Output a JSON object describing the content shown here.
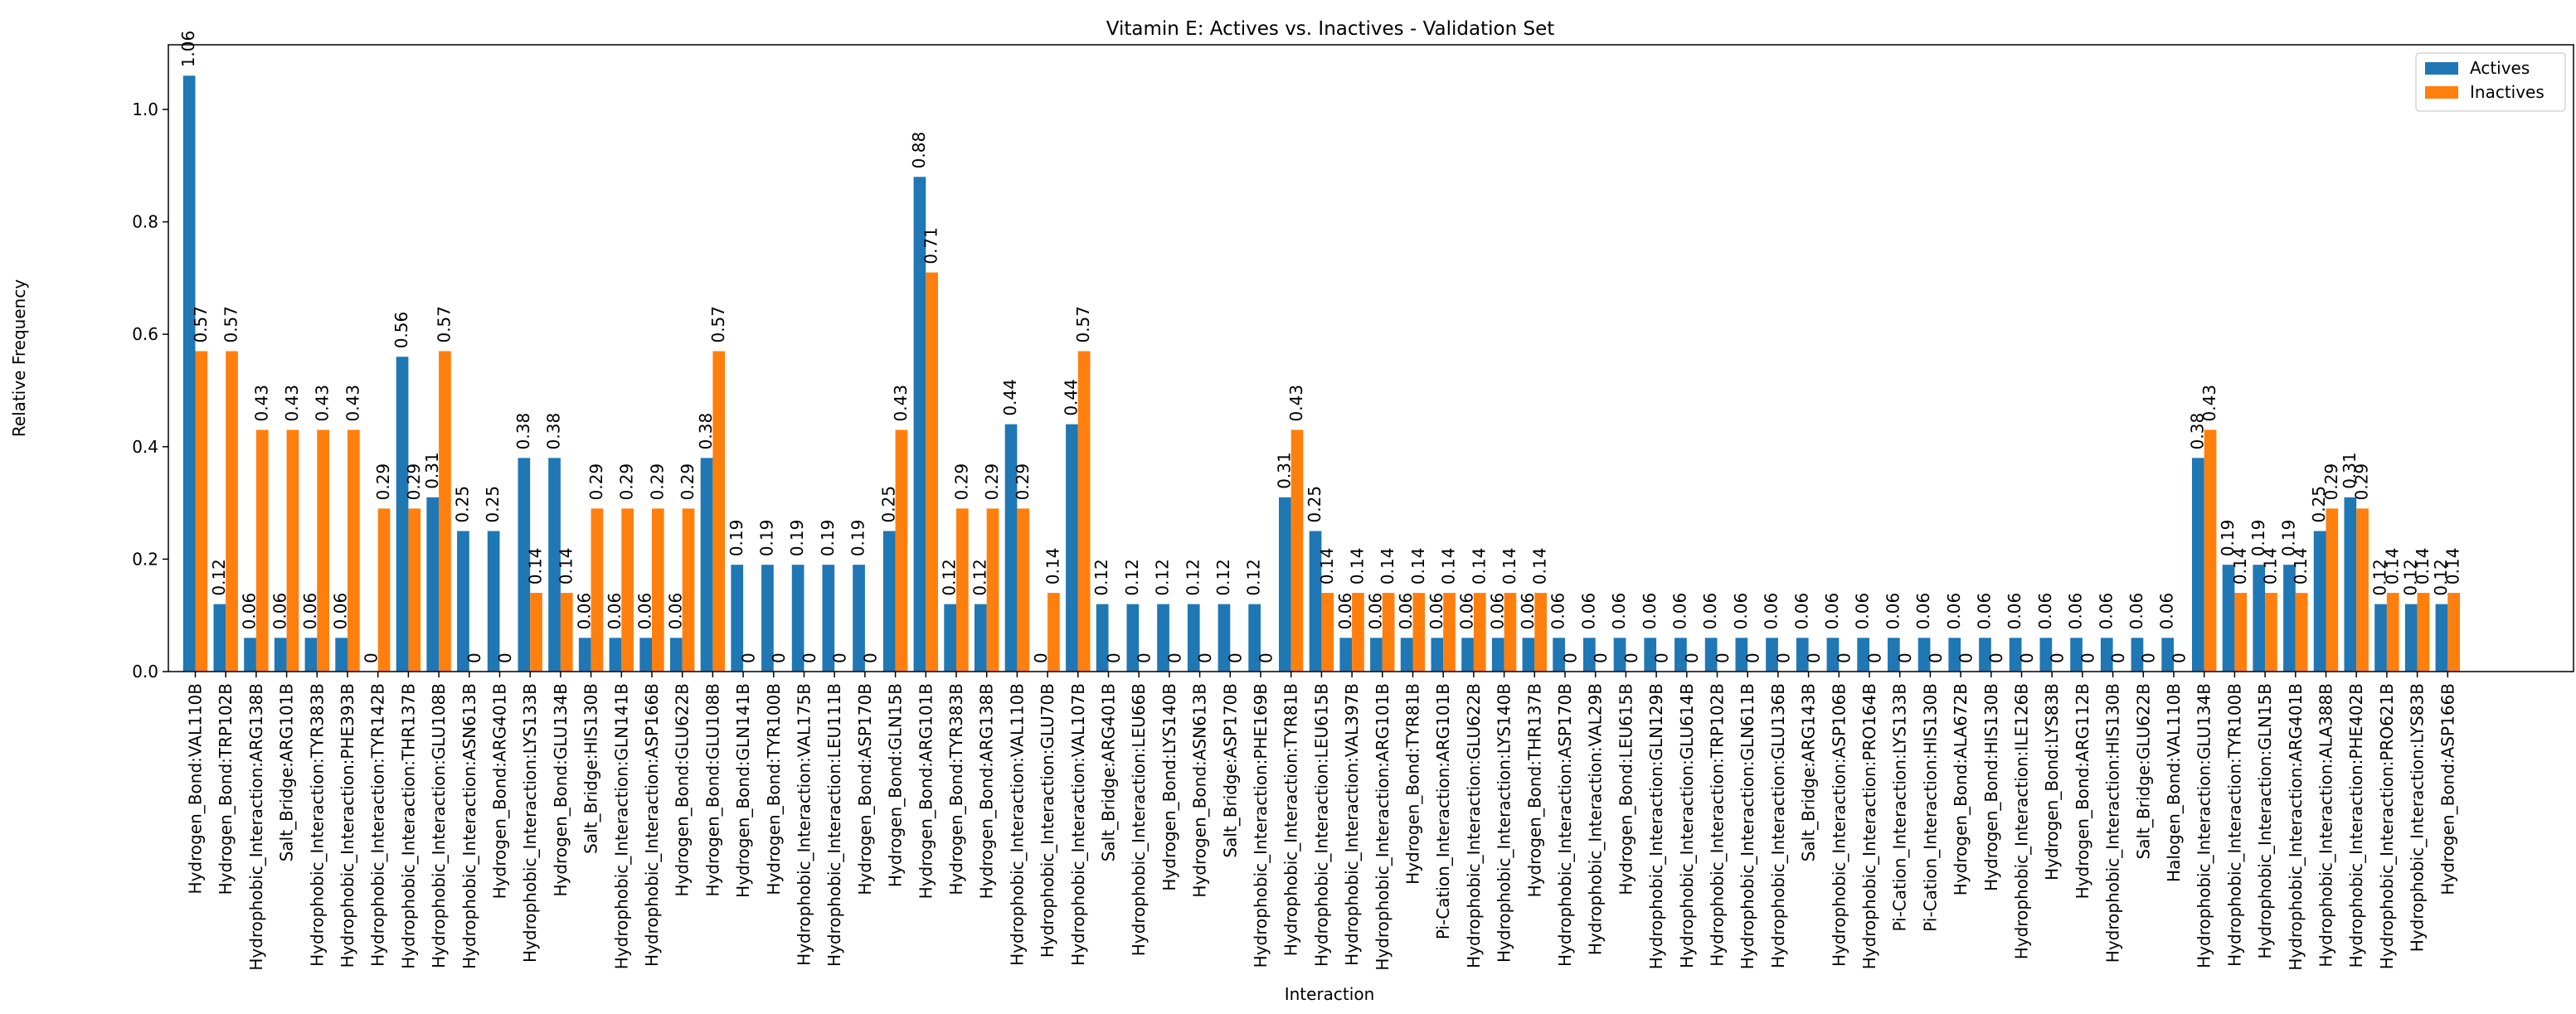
{
  "chart_data": {
    "type": "bar",
    "title": "Vitamin E: Actives vs. Inactives - Validation Set",
    "xlabel": "Interaction",
    "ylabel": "Relative Frequency",
    "ylim": [
      0,
      1.115
    ],
    "yticks": [
      0.0,
      0.2,
      0.4,
      0.6,
      0.8,
      1.0
    ],
    "ytick_labels": [
      "0.0",
      "0.2",
      "0.4",
      "0.6",
      "0.8",
      "1.0"
    ],
    "legend_position": "top-right",
    "grid": false,
    "categories": [
      "Hydrogen_Bond:VAL110B",
      "Hydrogen_Bond:TRP102B",
      "Hydrophobic_Interaction:ARG138B",
      "Salt_Bridge:ARG101B",
      "Hydrophobic_Interaction:TYR383B",
      "Hydrophobic_Interaction:PHE393B",
      "Hydrophobic_Interaction:TYR142B",
      "Hydrophobic_Interaction:THR137B",
      "Hydrophobic_Interaction:GLU108B",
      "Hydrophobic_Interaction:ASN613B",
      "Hydrogen_Bond:ARG401B",
      "Hydrophobic_Interaction:LYS133B",
      "Hydrogen_Bond:GLU134B",
      "Salt_Bridge:HIS130B",
      "Hydrophobic_Interaction:GLN141B",
      "Hydrophobic_Interaction:ASP166B",
      "Hydrogen_Bond:GLU622B",
      "Hydrogen_Bond:GLU108B",
      "Hydrogen_Bond:GLN141B",
      "Hydrogen_Bond:TYR100B",
      "Hydrophobic_Interaction:VAL175B",
      "Hydrophobic_Interaction:LEU111B",
      "Hydrogen_Bond:ASP170B",
      "Hydrogen_Bond:GLN15B",
      "Hydrogen_Bond:ARG101B",
      "Hydrogen_Bond:TYR383B",
      "Hydrogen_Bond:ARG138B",
      "Hydrophobic_Interaction:VAL110B",
      "Hydrophobic_Interaction:GLU70B",
      "Hydrophobic_Interaction:VAL107B",
      "Salt_Bridge:ARG401B",
      "Hydrophobic_Interaction:LEU66B",
      "Hydrogen_Bond:LYS140B",
      "Hydrogen_Bond:ASN613B",
      "Salt_Bridge:ASP170B",
      "Hydrophobic_Interaction:PHE169B",
      "Hydrophobic_Interaction:TYR81B",
      "Hydrophobic_Interaction:LEU615B",
      "Hydrophobic_Interaction:VAL397B",
      "Hydrophobic_Interaction:ARG101B",
      "Hydrogen_Bond:TYR81B",
      "Pi-Cation_Interaction:ARG101B",
      "Hydrophobic_Interaction:GLU622B",
      "Hydrophobic_Interaction:LYS140B",
      "Hydrogen_Bond:THR137B",
      "Hydrophobic_Interaction:ASP170B",
      "Hydrophobic_Interaction:VAL29B",
      "Hydrogen_Bond:LEU615B",
      "Hydrophobic_Interaction:GLN129B",
      "Hydrophobic_Interaction:GLU614B",
      "Hydrophobic_Interaction:TRP102B",
      "Hydrophobic_Interaction:GLN611B",
      "Hydrophobic_Interaction:GLU136B",
      "Salt_Bridge:ARG143B",
      "Hydrophobic_Interaction:ASP106B",
      "Hydrophobic_Interaction:PRO164B",
      "Pi-Cation_Interaction:LYS133B",
      "Pi-Cation_Interaction:HIS130B",
      "Hydrogen_Bond:ALA672B",
      "Hydrogen_Bond:HIS130B",
      "Hydrophobic_Interaction:ILE126B",
      "Hydrogen_Bond:LYS83B",
      "Hydrogen_Bond:ARG112B",
      "Hydrophobic_Interaction:HIS130B",
      "Salt_Bridge:GLU622B",
      "Halogen_Bond:VAL110B",
      "Hydrophobic_Interaction:GLU134B",
      "Hydrophobic_Interaction:TYR100B",
      "Hydrophobic_Interaction:GLN15B",
      "Hydrophobic_Interaction:ARG401B",
      "Hydrophobic_Interaction:ALA388B",
      "Hydrophobic_Interaction:PHE402B",
      "Hydrophobic_Interaction:PRO621B",
      "Hydrophobic_Interaction:LYS83B",
      "Hydrogen_Bond:ASP166B"
    ],
    "series": [
      {
        "name": "Actives",
        "color": "#1f77b4",
        "values": [
          1.06,
          0.12,
          0.06,
          0.06,
          0.06,
          0.06,
          0,
          0.56,
          0.31,
          0.25,
          0.25,
          0.38,
          0.38,
          0.06,
          0.06,
          0.06,
          0.06,
          0.38,
          0.19,
          0.19,
          0.19,
          0.19,
          0.19,
          0.25,
          0.88,
          0.12,
          0.12,
          0.44,
          0,
          0.44,
          0.12,
          0.12,
          0.12,
          0.12,
          0.12,
          0.12,
          0.31,
          0.25,
          0.06,
          0.06,
          0.06,
          0.06,
          0.06,
          0.06,
          0.06,
          0.06,
          0.06,
          0.06,
          0.06,
          0.06,
          0.06,
          0.06,
          0.06,
          0.06,
          0.06,
          0.06,
          0.06,
          0.06,
          0.06,
          0.06,
          0.06,
          0.06,
          0.06,
          0.06,
          0.06,
          0.06,
          0.38,
          0.19,
          0.19,
          0.19,
          0.25,
          0.31,
          0.12,
          0.12,
          0.12
        ],
        "labels": [
          "1.06",
          "0.12",
          "0.06",
          "0.06",
          "0.06",
          "0.06",
          "0",
          "0.56",
          "0.31",
          "0.25",
          "0.25",
          "0.38",
          "0.38",
          "0.06",
          "0.06",
          "0.06",
          "0.06",
          "0.38",
          "0.19",
          "0.19",
          "0.19",
          "0.19",
          "0.19",
          "0.25",
          "0.88",
          "0.12",
          "0.12",
          "0.44",
          "0",
          "0.44",
          "0.12",
          "0.12",
          "0.12",
          "0.12",
          "0.12",
          "0.12",
          "0.31",
          "0.25",
          "0.06",
          "0.06",
          "0.06",
          "0.06",
          "0.06",
          "0.06",
          "0.06",
          "0.06",
          "0.06",
          "0.06",
          "0.06",
          "0.06",
          "0.06",
          "0.06",
          "0.06",
          "0.06",
          "0.06",
          "0.06",
          "0.06",
          "0.06",
          "0.06",
          "0.06",
          "0.06",
          "0.06",
          "0.06",
          "0.06",
          "0.06",
          "0.06",
          "0.38",
          "0.19",
          "0.19",
          "0.19",
          "0.25",
          "0.31",
          "0.12",
          "0.12",
          "0.12"
        ]
      },
      {
        "name": "Inactives",
        "color": "#ff7f0e",
        "values": [
          0.57,
          0.57,
          0.43,
          0.43,
          0.43,
          0.43,
          0.29,
          0.29,
          0.57,
          0,
          0,
          0.14,
          0.14,
          0.29,
          0.29,
          0.29,
          0.29,
          0.57,
          0,
          0,
          0,
          0,
          0,
          0.43,
          0.71,
          0.29,
          0.29,
          0.29,
          0.14,
          0.57,
          0,
          0,
          0,
          0,
          0,
          0,
          0.43,
          0.14,
          0.14,
          0.14,
          0.14,
          0.14,
          0.14,
          0.14,
          0.14,
          0,
          0,
          0,
          0,
          0,
          0,
          0,
          0,
          0,
          0,
          0,
          0,
          0,
          0,
          0,
          0,
          0,
          0,
          0,
          0,
          0,
          0.43,
          0.14,
          0.14,
          0.14,
          0.29,
          0.29,
          0.14,
          0.14,
          0.14
        ],
        "labels": [
          "0.57",
          "0.57",
          "0.43",
          "0.43",
          "0.43",
          "0.43",
          "0.29",
          "0.29",
          "0.57",
          "0",
          "0",
          "0.14",
          "0.14",
          "0.29",
          "0.29",
          "0.29",
          "0.29",
          "0.57",
          "0",
          "0",
          "0",
          "0",
          "0",
          "0.43",
          "0.71",
          "0.29",
          "0.29",
          "0.29",
          "0.14",
          "0.57",
          "0",
          "0",
          "0",
          "0",
          "0",
          "0",
          "0.43",
          "0.14",
          "0.14",
          "0.14",
          "0.14",
          "0.14",
          "0.14",
          "0.14",
          "0.14",
          "0",
          "0",
          "0",
          "0",
          "0",
          "0",
          "0",
          "0",
          "0",
          "0",
          "0",
          "0",
          "0",
          "0",
          "0",
          "0",
          "0",
          "0",
          "0",
          "0",
          "0",
          "0.43",
          "0.14",
          "0.14",
          "0.14",
          "0.29",
          "0.29",
          "0.14",
          "0.14",
          "0.14"
        ]
      }
    ]
  }
}
